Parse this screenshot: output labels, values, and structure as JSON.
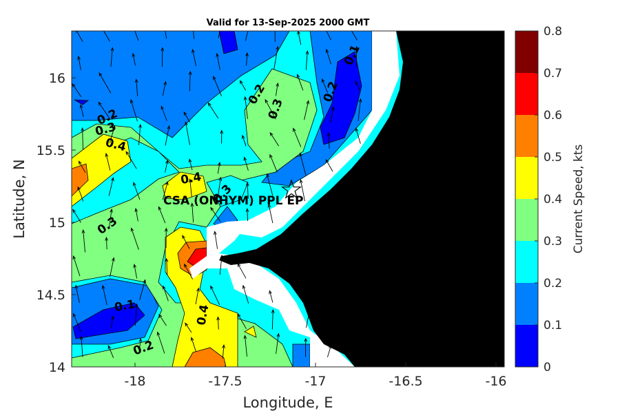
{
  "title": "Valid for 13-Sep-2025 2000 GMT",
  "xlabel": "Longitude, E",
  "ylabel": "Latitude, N",
  "colorbar_label": "Current Speed, kts",
  "site_label": "CSA (ONHYM) PPL EP",
  "contour_labels": [
    {
      "text": "0.2"
    },
    {
      "text": "0.3"
    },
    {
      "text": "0.4"
    },
    {
      "text": "0.2"
    },
    {
      "text": "0.3"
    },
    {
      "text": "0.2"
    },
    {
      "text": "0.1"
    },
    {
      "text": "0.4"
    },
    {
      "text": "0.3"
    },
    {
      "text": "0.3"
    },
    {
      "text": "0.1"
    },
    {
      "text": "0.2"
    },
    {
      "text": "0.4"
    }
  ],
  "colors": {
    "land": "#000000",
    "nodata": "#ffffff",
    "levels": [
      "#0000ff",
      "#0080ff",
      "#00ffff",
      "#80ff80",
      "#ffff00",
      "#ff8000",
      "#ff0000",
      "#800000"
    ]
  },
  "chart_data": {
    "type": "heatmap",
    "title": "Valid for 13-Sep-2025 2000 GMT",
    "xlabel": "Longitude, E",
    "ylabel": "Latitude, N",
    "xlim": [
      -18.35,
      -15.95
    ],
    "ylim": [
      14.0,
      16.35
    ],
    "xticks": [
      "-18",
      "-17.5",
      "-17",
      "-16.5",
      "-16"
    ],
    "yticks": [
      "14",
      "14.5",
      "15",
      "15.5",
      "16"
    ],
    "colorbar": {
      "label": "Current Speed, kts",
      "range": [
        0,
        0.8
      ],
      "ticks": [
        "0",
        "0.1",
        "0.2",
        "0.3",
        "0.4",
        "0.5",
        "0.6",
        "0.7",
        "0.8"
      ]
    },
    "site_marker": {
      "label": "CSA (ONHYM) PPL EP",
      "lon": -17.1,
      "lat": 15.22
    }
  }
}
